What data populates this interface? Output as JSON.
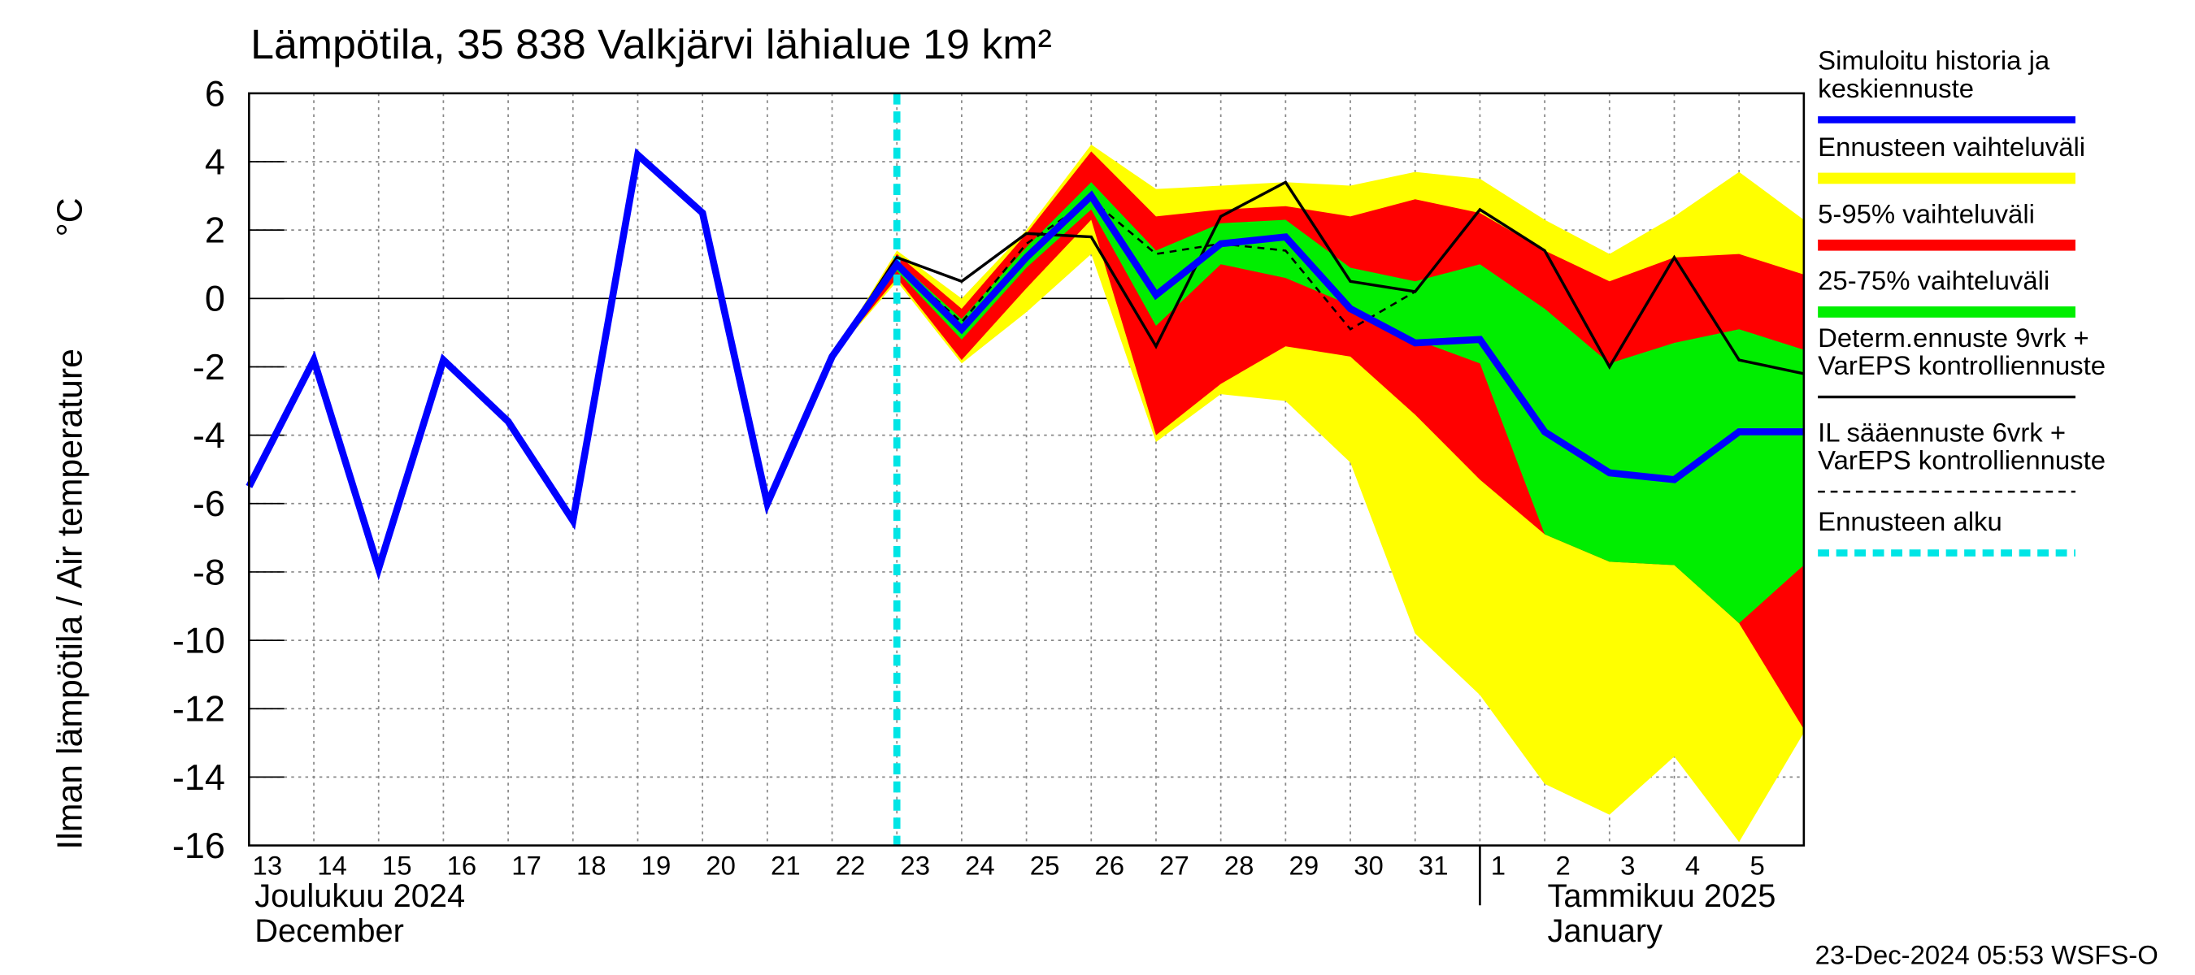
{
  "chart_data": {
    "type": "line",
    "title": "Lämpötila, 35 838 Valkjärvi lähialue 19 km²",
    "ylabel": "Ilman lämpötila / Air temperature",
    "yunit": "°C",
    "categories": [
      "13",
      "14",
      "15",
      "16",
      "17",
      "18",
      "19",
      "20",
      "21",
      "22",
      "23",
      "24",
      "25",
      "26",
      "27",
      "28",
      "29",
      "30",
      "31",
      "1",
      "2",
      "3",
      "4",
      "5",
      null
    ],
    "months": [
      {
        "index": 0,
        "lines": [
          "Joulukuu  2024",
          "December"
        ]
      },
      {
        "index": 19,
        "lines": [
          "Tammikuu  2025",
          "January"
        ]
      }
    ],
    "ylim": [
      -16,
      6
    ],
    "yticks": [
      6,
      4,
      2,
      0,
      -2,
      -4,
      -6,
      -8,
      -10,
      -12,
      -14,
      -16
    ],
    "grid": true,
    "bands": [
      {
        "name": [
          "Ennusteen vaihteluväli"
        ],
        "color": "#ffff00",
        "lower": [
          null,
          null,
          null,
          null,
          null,
          null,
          null,
          null,
          null,
          -1.7,
          0.5,
          -1.9,
          -0.4,
          1.3,
          -4.2,
          -2.8,
          -3.0,
          -4.8,
          -9.8,
          -11.6,
          -14.2,
          -15.1,
          -13.4,
          -15.9,
          -12.7
        ],
        "upper": [
          null,
          null,
          null,
          null,
          null,
          null,
          null,
          null,
          null,
          -1.7,
          1.4,
          0.0,
          2.0,
          4.5,
          3.2,
          3.3,
          3.4,
          3.3,
          3.7,
          3.5,
          2.3,
          1.3,
          2.4,
          3.7,
          2.3
        ]
      },
      {
        "name": [
          "5-95% vaihteluväli"
        ],
        "color": "#ff0000",
        "lower": [
          null,
          null,
          null,
          null,
          null,
          null,
          null,
          null,
          null,
          -1.7,
          0.6,
          -1.8,
          0.3,
          2.3,
          -4.0,
          -2.5,
          -1.4,
          -1.7,
          -3.4,
          -5.3,
          -6.9,
          -7.7,
          -7.8,
          -9.5,
          -12.6
        ],
        "upper": [
          null,
          null,
          null,
          null,
          null,
          null,
          null,
          null,
          null,
          -1.7,
          1.3,
          -0.3,
          1.9,
          4.3,
          2.4,
          2.6,
          2.7,
          2.4,
          2.9,
          2.5,
          1.4,
          0.5,
          1.2,
          1.3,
          0.7
        ]
      },
      {
        "name": [
          "25-75% vaihteluväli"
        ],
        "color": "#00ee00",
        "lower": [
          null,
          null,
          null,
          null,
          null,
          null,
          null,
          null,
          null,
          -1.7,
          0.8,
          -1.2,
          0.9,
          2.6,
          -0.8,
          1.0,
          0.6,
          -0.2,
          -1.2,
          -1.9,
          -6.9,
          -7.7,
          -7.8,
          -9.5,
          -7.8
        ],
        "upper": [
          null,
          null,
          null,
          null,
          null,
          null,
          null,
          null,
          null,
          -1.7,
          1.1,
          -0.6,
          1.5,
          3.4,
          1.4,
          2.2,
          2.3,
          0.9,
          0.5,
          1.0,
          -0.3,
          -1.9,
          -1.3,
          -0.9,
          -1.5
        ]
      }
    ],
    "series": [
      {
        "name": [
          "Simuloitu historia ja",
          "keskiennuste"
        ],
        "color": "#0000ff",
        "width": 5,
        "values": [
          -5.5,
          -1.8,
          -7.9,
          -1.8,
          -3.6,
          -6.5,
          4.2,
          2.5,
          -6.0,
          -1.7,
          1.0,
          -0.9,
          1.2,
          3.0,
          0.1,
          1.6,
          1.8,
          -0.3,
          -1.3,
          -1.2,
          -3.9,
          -5.1,
          -5.3,
          -3.9,
          -3.9
        ]
      },
      {
        "name": [
          "Determ.ennuste 9vrk +",
          "VarEPS kontrolliennuste"
        ],
        "color": "#000000",
        "width": 2,
        "values": [
          null,
          null,
          null,
          null,
          null,
          null,
          null,
          null,
          -6.0,
          -1.7,
          1.2,
          0.5,
          1.9,
          1.8,
          -1.4,
          2.4,
          3.4,
          0.5,
          0.2,
          2.6,
          1.4,
          -2.0,
          1.2,
          -1.8,
          -2.2
        ]
      },
      {
        "name": [
          "IL sääennuste 6vrk  +",
          "  VarEPS kontrolliennuste"
        ],
        "color": "#000000",
        "width": 1.5,
        "dash": "5,4",
        "values": [
          null,
          null,
          null,
          null,
          null,
          null,
          null,
          null,
          null,
          -1.7,
          1.0,
          -0.7,
          1.6,
          2.9,
          1.3,
          1.6,
          1.4,
          -0.9,
          0.2,
          null,
          null,
          null,
          null,
          null,
          null
        ]
      }
    ],
    "forecast_start": {
      "x": 10,
      "name": [
        "Ennusteen alku"
      ],
      "color": "#00e5e5"
    },
    "footer": "23-Dec-2024 05:53 WSFS-O"
  }
}
